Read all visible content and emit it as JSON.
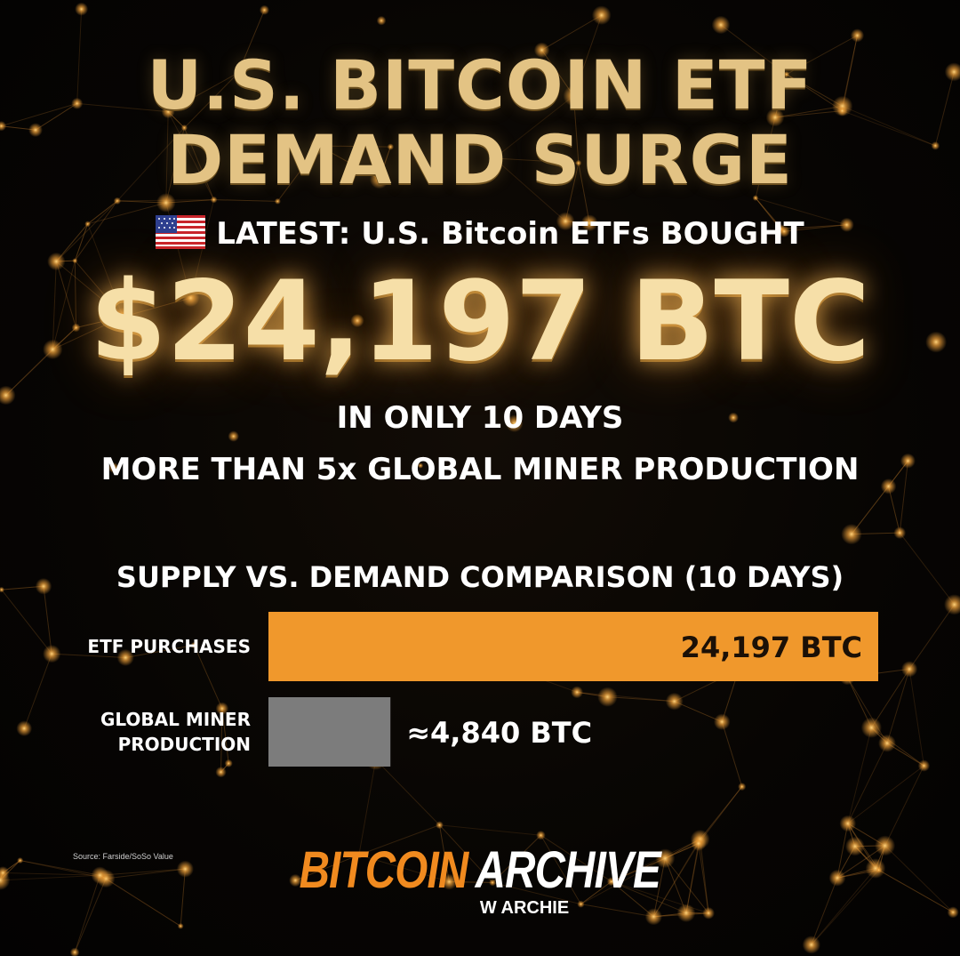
{
  "header": {
    "title_line1": "U.S. BITCOIN ETF",
    "title_line2": "DEMAND SURGE",
    "latest": "LATEST: U.S. Bitcoin ETFs BOUGHT",
    "amount": "$24,197 BTC",
    "period": "IN ONLY 10 DAYS",
    "multiple": "MORE THAN 5x GLOBAL MINER PRODUCTION"
  },
  "chart_data": {
    "type": "bar",
    "orientation": "horizontal",
    "title": "SUPPLY VS. DEMAND COMPARISON (10 DAYS)",
    "categories": [
      "ETF PURCHASES",
      "GLOBAL MINER PRODUCTION"
    ],
    "category_lines": [
      [
        "ETF PURCHASES"
      ],
      [
        "GLOBAL MINER",
        "PRODUCTION"
      ]
    ],
    "values": [
      24197,
      4840
    ],
    "value_labels": [
      "24,197 BTC",
      "≈4,840 BTC"
    ],
    "units": "BTC",
    "xlim": [
      0,
      24197
    ],
    "colors": [
      "#f0982c",
      "#7c7c7c"
    ],
    "grid": false,
    "legend": "none"
  },
  "footer": {
    "source": "Source: Farside/SoSo Value",
    "brand_part1": "BITCOIN",
    "brand_part2": "ARCHIVE",
    "brand_sub": "W ARCHIE"
  },
  "theme": {
    "accent": "#f0982c",
    "title_gold": "#e3c384",
    "glow": "#ffb347",
    "background": "#050403"
  }
}
